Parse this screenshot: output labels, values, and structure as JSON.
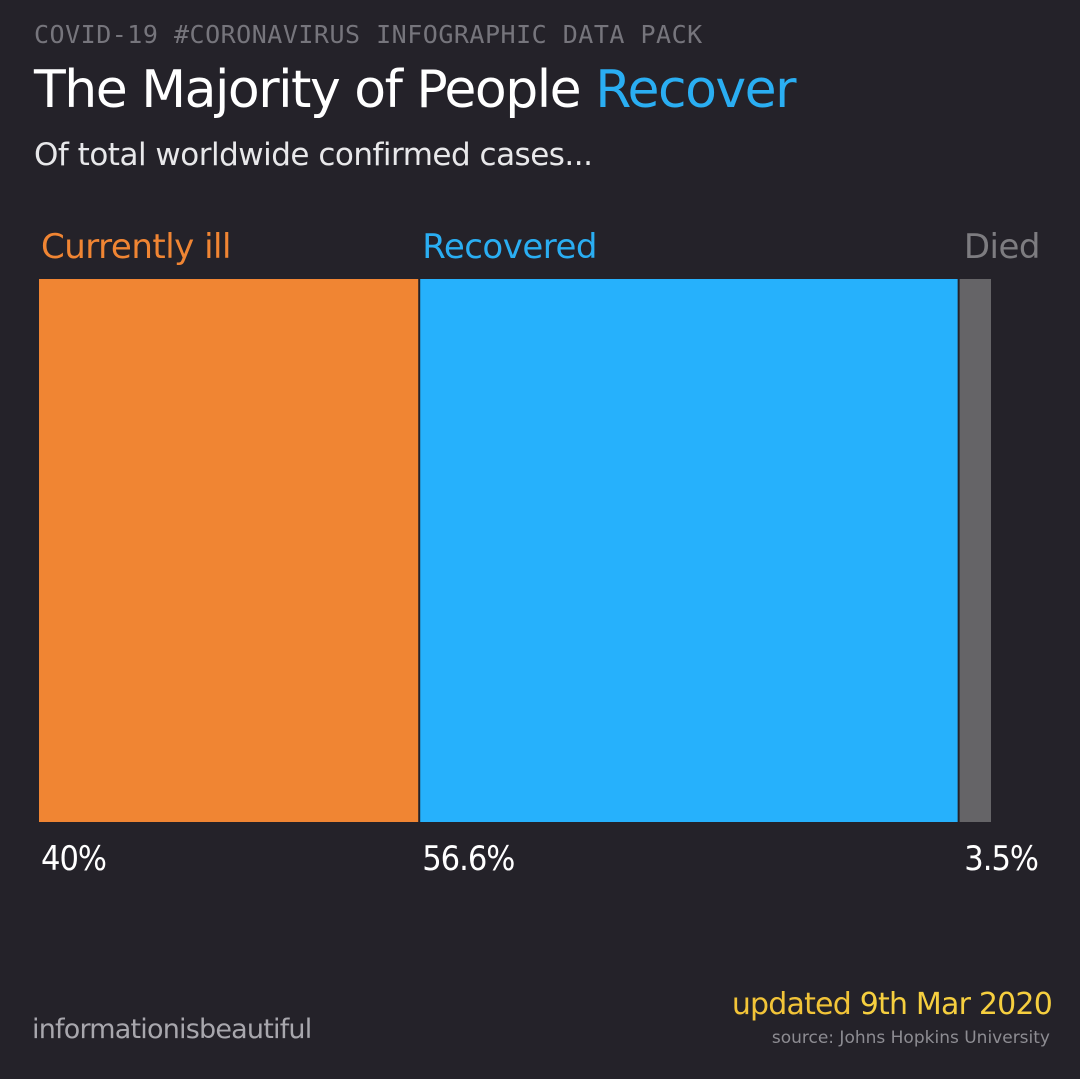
{
  "header": {
    "kicker": "COVID-19 #CORONAVIRUS INFOGRAPHIC DATA PACK",
    "title_main": "The Majority of People ",
    "title_highlight": "Recover",
    "subtitle": "Of total worldwide confirmed cases..."
  },
  "chart_data": {
    "type": "bar",
    "subtype": "stacked-100-percent",
    "categories": [
      "Currently ill",
      "Recovered",
      "Died"
    ],
    "values": [
      40,
      56.6,
      3.5
    ],
    "value_labels": [
      "40%",
      "56.6%",
      "3.5%"
    ],
    "unit": "%",
    "colors": [
      "#f08533",
      "#26b1fc",
      "#656467"
    ],
    "label_colors": [
      "#f08533",
      "#2aaef2",
      "#7d7c80"
    ],
    "title": "The Majority of People Recover",
    "subtitle": "Of total worldwide confirmed cases...",
    "xlabel": "",
    "ylabel": "",
    "grid": false,
    "legend": "none"
  },
  "footer": {
    "logo_text": "informationisbeautiful",
    "updated_prefix": "updated ",
    "updated_date": "9th Mar 2020",
    "source": "source: Johns Hopkins University"
  },
  "colors": {
    "background": "#242229",
    "accent_blue": "#2aaef2",
    "accent_orange": "#f08533",
    "accent_gray": "#656467",
    "updated_yellow": "#f2c438"
  }
}
